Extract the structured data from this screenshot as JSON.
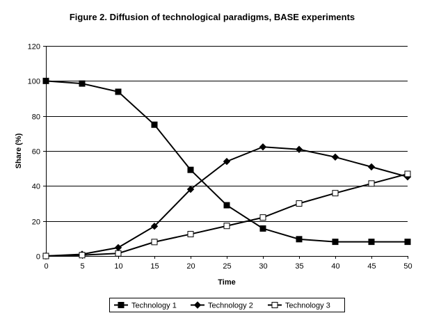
{
  "chart_data": {
    "type": "line",
    "title": "Figure 2. Diffusion of technological paradigms, BASE experiments",
    "xlabel": "Time",
    "ylabel": "Share (%)",
    "x": [
      0,
      5,
      10,
      15,
      20,
      25,
      30,
      35,
      40,
      45,
      50
    ],
    "xlim": [
      0,
      50
    ],
    "ylim": [
      0,
      120
    ],
    "xticks": [
      "0",
      "5",
      "10",
      "15",
      "20",
      "25",
      "30",
      "35",
      "40",
      "45",
      "50"
    ],
    "yticks": [
      "0",
      "20",
      "40",
      "60",
      "80",
      "100",
      "120"
    ],
    "grid": "horizontal",
    "legend_position": "bottom",
    "series": [
      {
        "name": "Technology 1",
        "marker": "filled-square",
        "values": [
          100,
          98.5,
          93.8,
          75,
          49.2,
          29,
          15.7,
          9.6,
          8.1,
          8.1,
          8.1
        ]
      },
      {
        "name": "Technology 2",
        "marker": "filled-diamond",
        "values": [
          0,
          1,
          4.8,
          17,
          38.1,
          54,
          62.3,
          60.9,
          56.5,
          50.9,
          45.2
        ]
      },
      {
        "name": "Technology 3",
        "marker": "open-square",
        "values": [
          0,
          0.5,
          1.5,
          8,
          12.5,
          17.2,
          22,
          30,
          35.9,
          41.4,
          46.9
        ]
      }
    ]
  }
}
